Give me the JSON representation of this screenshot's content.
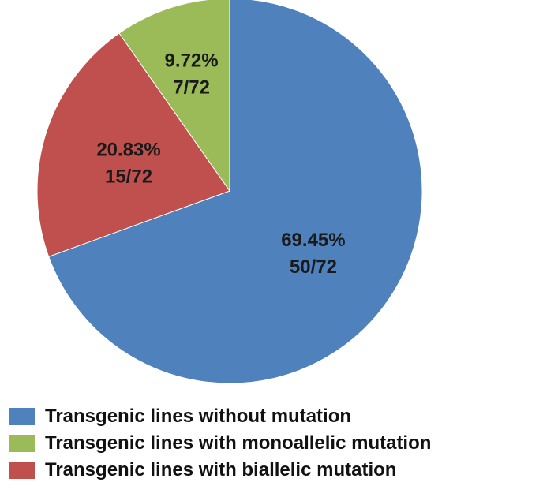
{
  "chart_data": {
    "type": "pie",
    "start_angle_deg": 0,
    "direction": "clockwise",
    "slices": [
      {
        "name": "Transgenic lines without mutation",
        "value": 69.45,
        "percent_label": "69.45%",
        "count_label": "50/72",
        "color": "#4F81BD"
      },
      {
        "name": "Transgenic lines with biallelic mutation",
        "value": 20.83,
        "percent_label": "20.83%",
        "count_label": "15/72",
        "color": "#C0504D"
      },
      {
        "name": "Transgenic lines with monoallelic mutation",
        "value": 9.72,
        "percent_label": "9.72%",
        "count_label": "7/72",
        "color": "#9BBB59"
      }
    ],
    "legend": {
      "placement": "bottom",
      "items": [
        {
          "label": "Transgenic lines without mutation",
          "color": "#4F81BD"
        },
        {
          "label": "Transgenic lines with monoallelic mutation",
          "color": "#9BBB59"
        },
        {
          "label": "Transgenic lines with biallelic mutation",
          "color": "#C0504D"
        }
      ]
    }
  }
}
